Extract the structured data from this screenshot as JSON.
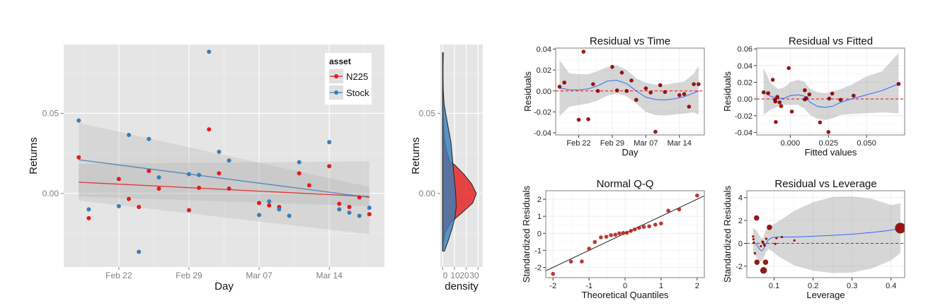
{
  "chart_data": [
    {
      "id": "returns",
      "type": "scatter",
      "title": "",
      "xlabel": "Day",
      "ylabel": "Returns",
      "x_ticks": [
        "Feb 22",
        "Feb 29",
        "Mar 07",
        "Mar 14"
      ],
      "x_tick_days": [
        4,
        11,
        18,
        25
      ],
      "y_ticks": [
        "0.00",
        "0.05"
      ],
      "y_tick_values": [
        0.0,
        0.05
      ],
      "xlim_days": [
        -1.5,
        30.5
      ],
      "ylim": [
        -0.046,
        0.093
      ],
      "legend": {
        "title": "asset",
        "position": "top-right",
        "entries": [
          "N225",
          "Stock"
        ]
      },
      "grid": true,
      "series": [
        {
          "name": "N225",
          "color": "#e41a1c",
          "days": [
            0,
            1,
            4,
            5,
            6,
            7,
            8,
            11,
            12,
            13,
            14,
            15,
            18,
            19,
            20,
            22,
            23,
            25,
            26,
            27,
            28,
            29
          ],
          "values": [
            0.0225,
            -0.0155,
            0.009,
            -0.0035,
            -0.0085,
            0.014,
            0.003,
            -0.0105,
            0.0035,
            0.04,
            0.0125,
            0.003,
            -0.006,
            -0.0075,
            -0.0085,
            0.0125,
            0.005,
            0.017,
            -0.0065,
            -0.0085,
            -0.0025,
            -0.013
          ],
          "fit": {
            "start": 0.007,
            "end": -0.002,
            "band_low_start": -0.0045,
            "band_high_start": 0.0185,
            "band_low_end": -0.0255,
            "band_high_end": 0.02
          }
        },
        {
          "name": "Stock",
          "color": "#377eb8",
          "days": [
            0,
            1,
            4,
            5,
            6,
            7,
            8,
            11,
            12,
            13,
            14,
            15,
            18,
            19,
            20,
            21,
            22,
            25,
            26,
            27,
            28,
            29
          ],
          "values": [
            0.0455,
            -0.01,
            -0.008,
            0.0365,
            -0.0365,
            0.034,
            0.01,
            0.012,
            0.0115,
            0.0885,
            0.026,
            0.0205,
            -0.0135,
            -0.005,
            -0.01,
            -0.014,
            0.0195,
            0.032,
            -0.01,
            -0.012,
            -0.014,
            -0.009
          ],
          "fit": {
            "start": 0.021,
            "end": -0.0025,
            "band_low_start": -0.002,
            "band_high_start": 0.044,
            "band_low_end": -0.008,
            "band_high_end": 0.004
          }
        }
      ]
    },
    {
      "id": "density",
      "type": "area",
      "xlabel": "density",
      "ylabel": "Returns",
      "x_ticks": [
        "0",
        "10",
        "20",
        "30"
      ],
      "x_tick_values": [
        0,
        10,
        20,
        30
      ],
      "xlim": [
        -2,
        34
      ],
      "y_ticks": [
        "0.00",
        "0.05"
      ],
      "y_tick_values": [
        0.0,
        0.05
      ],
      "ylim": [
        -0.046,
        0.093
      ],
      "series": [
        {
          "name": "Stock",
          "color": "#377eb8",
          "y": [
            -0.036,
            -0.03,
            -0.022,
            -0.015,
            -0.008,
            0.0,
            0.008,
            0.016,
            0.024,
            0.032,
            0.04,
            0.048,
            0.056,
            0.064,
            0.072,
            0.08,
            0.088
          ],
          "density": [
            1.5,
            4.5,
            8.0,
            10.5,
            11.5,
            11.0,
            10.0,
            9.0,
            8.0,
            7.0,
            5.0,
            3.0,
            1.2,
            0.5,
            0.3,
            0.3,
            0.5
          ]
        },
        {
          "name": "N225",
          "color": "#e41a1c",
          "y": [
            -0.036,
            -0.03,
            -0.024,
            -0.018,
            -0.012,
            -0.006,
            0.0,
            0.006,
            0.012,
            0.018,
            0.02,
            0.026,
            0.034,
            0.044,
            0.06,
            0.088
          ],
          "density": [
            0.1,
            0.5,
            2.5,
            7.0,
            16.5,
            25.5,
            28.5,
            24.5,
            18.0,
            10.0,
            6.0,
            3.5,
            1.5,
            0.5,
            0.1,
            0.0
          ]
        }
      ]
    },
    {
      "id": "resid-time",
      "type": "scatter",
      "title": "Residual vs Time",
      "xlabel": "Day",
      "ylabel": "Residuals",
      "x_ticks": [
        "Feb 22",
        "Feb 29",
        "Mar 07",
        "Mar 14"
      ],
      "x_tick_days": [
        4,
        11,
        18,
        25
      ],
      "xlim_days": [
        -0.8,
        30.2
      ],
      "y_ticks": [
        "-0.04",
        "-0.02",
        "0.00",
        "0.02",
        "0.04"
      ],
      "y_tick_values": [
        -0.04,
        -0.02,
        0.0,
        0.02,
        0.04
      ],
      "ylim": [
        -0.042,
        0.041
      ],
      "points": {
        "days": [
          0,
          1,
          4,
          5,
          6,
          7,
          8,
          11,
          12,
          13,
          14,
          15,
          16,
          18,
          19,
          20,
          21,
          22,
          25,
          26,
          27,
          28,
          29
        ],
        "values": [
          0.004,
          0.008,
          -0.0275,
          0.0375,
          -0.027,
          0.0065,
          0.0,
          0.023,
          0.0005,
          0.0175,
          0.0,
          0.01,
          -0.0085,
          0.0025,
          -0.0015,
          -0.039,
          0.0055,
          -0.001,
          -0.004,
          -0.003,
          -0.015,
          0.0065,
          0.0065
        ]
      },
      "smooth": {
        "days": [
          0,
          2,
          4,
          6,
          8,
          10,
          12,
          14,
          16,
          18,
          20,
          22,
          24,
          26,
          28,
          29
        ],
        "fit": [
          0.0028,
          0.0012,
          0.001,
          0.002,
          0.005,
          0.0095,
          0.0102,
          0.007,
          0.0,
          -0.006,
          -0.0082,
          -0.0085,
          -0.0075,
          -0.0055,
          -0.002,
          0.0
        ],
        "lower": [
          -0.024,
          -0.015,
          -0.0135,
          -0.012,
          -0.009,
          -0.0045,
          -0.0025,
          -0.005,
          -0.012,
          -0.02,
          -0.023,
          -0.0235,
          -0.0225,
          -0.0215,
          -0.0205,
          -0.0225
        ],
        "upper": [
          0.0295,
          0.017,
          0.016,
          0.016,
          0.019,
          0.023,
          0.0245,
          0.02,
          0.012,
          0.008,
          0.006,
          0.006,
          0.0075,
          0.009,
          0.0165,
          0.024
        ]
      }
    },
    {
      "id": "resid-fitted",
      "type": "scatter",
      "title": "Residual vs Fitted",
      "xlabel": "Fitted values",
      "ylabel": "Residuals",
      "x_ticks": [
        "0.000",
        "0.025",
        "0.050"
      ],
      "x_tick_values": [
        0.0,
        0.025,
        0.05
      ],
      "xlim": [
        -0.022,
        0.075
      ],
      "y_ticks": [
        "-0.04",
        "-0.02",
        "0.00",
        "0.02",
        "0.04",
        "0.06"
      ],
      "y_tick_values": [
        -0.04,
        -0.02,
        0.0,
        0.02,
        0.04,
        0.06
      ],
      "ylim": [
        -0.043,
        0.061
      ],
      "points": {
        "x": [
          -0.0175,
          -0.0145,
          -0.0115,
          -0.01,
          -0.0098,
          -0.0095,
          -0.0085,
          -0.007,
          -0.006,
          -0.001,
          0.001,
          0.0095,
          0.0095,
          0.0105,
          0.0125,
          0.0195,
          0.025,
          0.0255,
          0.0275,
          0.033,
          0.0415,
          0.071
        ],
        "y": [
          0.008,
          0.007,
          0.023,
          -0.001,
          -0.003,
          -0.0275,
          0.0025,
          -0.004,
          -0.0085,
          0.037,
          -0.015,
          0.0105,
          -0.0005,
          0.001,
          0.0055,
          -0.028,
          -0.0395,
          0.0005,
          0.0065,
          -0.001,
          0.004,
          0.018
        ]
      },
      "smooth": {
        "x": [
          -0.0175,
          -0.013,
          -0.008,
          -0.004,
          0.0,
          0.005,
          0.009,
          0.013,
          0.018,
          0.023,
          0.028,
          0.033,
          0.04,
          0.05,
          0.06,
          0.071
        ],
        "fit": [
          0.008,
          0.0035,
          0.0005,
          0.001,
          0.004,
          0.005,
          0.0035,
          -0.004,
          -0.009,
          -0.01,
          -0.0085,
          -0.004,
          0.0,
          0.005,
          0.01,
          0.018
        ],
        "lower": [
          -0.019,
          -0.013,
          -0.009,
          -0.007,
          -0.007,
          -0.007,
          -0.011,
          -0.019,
          -0.024,
          -0.025,
          -0.023,
          -0.019,
          -0.018,
          -0.017,
          -0.016,
          -0.017
        ],
        "upper": [
          0.037,
          0.019,
          0.012,
          0.014,
          0.02,
          0.023,
          0.021,
          0.012,
          0.008,
          0.007,
          0.009,
          0.012,
          0.017,
          0.027,
          0.033,
          0.055
        ]
      }
    },
    {
      "id": "normal-qq",
      "type": "scatter",
      "title": "Normal Q-Q",
      "xlabel": "Theoretical Quantiles",
      "ylabel": "Standardized Residuals",
      "x_ticks": [
        "-2",
        "-1",
        "0",
        "1",
        "2"
      ],
      "x_tick_values": [
        -2,
        -1,
        0,
        1,
        2
      ],
      "xlim": [
        -2.2,
        2.2
      ],
      "y_ticks": [
        "-2",
        "-1",
        "0",
        "1",
        "2"
      ],
      "y_tick_values": [
        -2,
        -1,
        0,
        1,
        2
      ],
      "ylim": [
        -2.6,
        2.5
      ],
      "points": {
        "x": [
          -2.0,
          -1.5,
          -1.2,
          -1.0,
          -0.84,
          -0.67,
          -0.52,
          -0.39,
          -0.27,
          -0.16,
          -0.05,
          0.05,
          0.16,
          0.27,
          0.39,
          0.52,
          0.67,
          0.84,
          1.0,
          1.2,
          1.5,
          2.0
        ],
        "y": [
          -2.38,
          -1.66,
          -1.65,
          -0.9,
          -0.51,
          -0.24,
          -0.2,
          -0.11,
          -0.08,
          0.0,
          0.02,
          0.03,
          0.14,
          0.23,
          0.32,
          0.38,
          0.41,
          0.51,
          0.58,
          1.33,
          1.4,
          2.22
        ]
      },
      "reference_line": {
        "intercept": 0.0,
        "slope": 1.0
      }
    },
    {
      "id": "resid-leverage",
      "type": "scatter",
      "title": "Residual vs Leverage",
      "xlabel": "Leverage",
      "ylabel": "Standardized Residuals",
      "x_ticks": [
        "0.1",
        "0.2",
        "0.3",
        "0.4"
      ],
      "x_tick_values": [
        0.1,
        0.2,
        0.3,
        0.4
      ],
      "xlim": [
        0.03,
        0.435
      ],
      "y_ticks": [
        "-2",
        "0",
        "2",
        "4"
      ],
      "y_tick_values": [
        -2,
        0,
        2,
        4
      ],
      "ylim": [
        -3.0,
        4.6
      ],
      "points": {
        "x": [
          0.046,
          0.047,
          0.048,
          0.051,
          0.055,
          0.056,
          0.066,
          0.07,
          0.072,
          0.073,
          0.074,
          0.076,
          0.078,
          0.08,
          0.088,
          0.103,
          0.106,
          0.12,
          0.152,
          0.424
        ],
        "y": [
          0.6,
          0.35,
          0.05,
          -0.87,
          2.22,
          -1.65,
          -0.25,
          0.15,
          0.1,
          -2.37,
          -0.1,
          -0.2,
          -1.65,
          0.4,
          1.4,
          -0.05,
          0.45,
          0.55,
          0.25,
          1.33
        ],
        "size": [
          1,
          1,
          1,
          1,
          2,
          2,
          1,
          1,
          1,
          2.5,
          1,
          1,
          2,
          1,
          2,
          1,
          1,
          1,
          1,
          4
        ]
      },
      "smooth": {
        "x": [
          0.046,
          0.055,
          0.062,
          0.068,
          0.072,
          0.078,
          0.085,
          0.095,
          0.11,
          0.15,
          0.2,
          0.25,
          0.3,
          0.35,
          0.4,
          0.424
        ],
        "fit": [
          0.15,
          -0.1,
          -0.5,
          -0.65,
          -0.55,
          -0.1,
          0.3,
          0.5,
          0.55,
          0.55,
          0.62,
          0.7,
          0.8,
          0.95,
          1.15,
          1.32
        ],
        "lower": [
          -0.9,
          -1.2,
          -1.55,
          -1.6,
          -1.4,
          -0.85,
          -0.5,
          -0.7,
          -1.1,
          -1.9,
          -2.4,
          -2.6,
          -2.55,
          -2.2,
          -1.5,
          -0.85
        ],
        "upper": [
          1.35,
          1.1,
          0.7,
          0.4,
          0.5,
          1.1,
          1.45,
          1.6,
          1.9,
          2.8,
          3.6,
          4.05,
          4.1,
          3.9,
          3.35,
          3.5
        ]
      }
    }
  ]
}
